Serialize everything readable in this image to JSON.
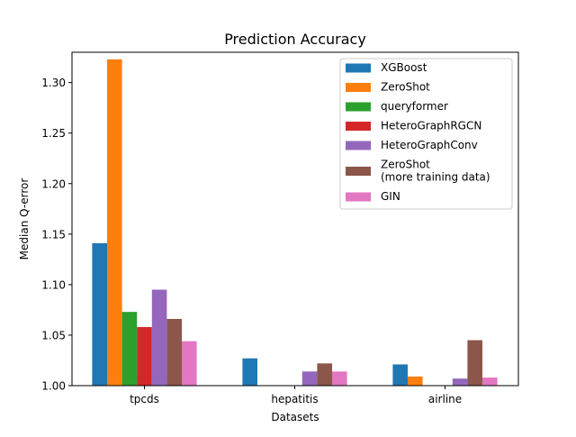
{
  "chart_data": {
    "type": "bar",
    "title": "Prediction Accuracy",
    "xlabel": "Datasets",
    "ylabel": "Median Q-error",
    "categories": [
      "tpcds",
      "hepatitis",
      "airline"
    ],
    "ylim": [
      1.0,
      1.33
    ],
    "yticks": [
      1.0,
      1.05,
      1.1,
      1.15,
      1.2,
      1.25,
      1.3
    ],
    "ytick_labels": [
      "1.00",
      "1.05",
      "1.10",
      "1.15",
      "1.20",
      "1.25",
      "1.30"
    ],
    "grid": false,
    "legend_position": "top-right",
    "series": [
      {
        "name": "XGBoost",
        "color": "#1f77b4",
        "values": [
          1.141,
          1.027,
          1.021
        ]
      },
      {
        "name": "ZeroShot",
        "color": "#ff7f0e",
        "values": [
          1.323,
          null,
          1.009
        ]
      },
      {
        "name": "queryformer",
        "color": "#2ca02c",
        "values": [
          1.073,
          null,
          null
        ]
      },
      {
        "name": "HeteroGraphRGCN",
        "color": "#d62728",
        "values": [
          1.058,
          null,
          null
        ]
      },
      {
        "name": "HeteroGraphConv",
        "color": "#9467bd",
        "values": [
          1.095,
          1.014,
          1.007
        ]
      },
      {
        "name": "ZeroShot\n(more training data)",
        "color": "#8c564b",
        "values": [
          1.066,
          1.022,
          1.045
        ]
      },
      {
        "name": "GIN",
        "color": "#e377c2",
        "values": [
          1.044,
          1.014,
          1.008
        ]
      }
    ]
  }
}
